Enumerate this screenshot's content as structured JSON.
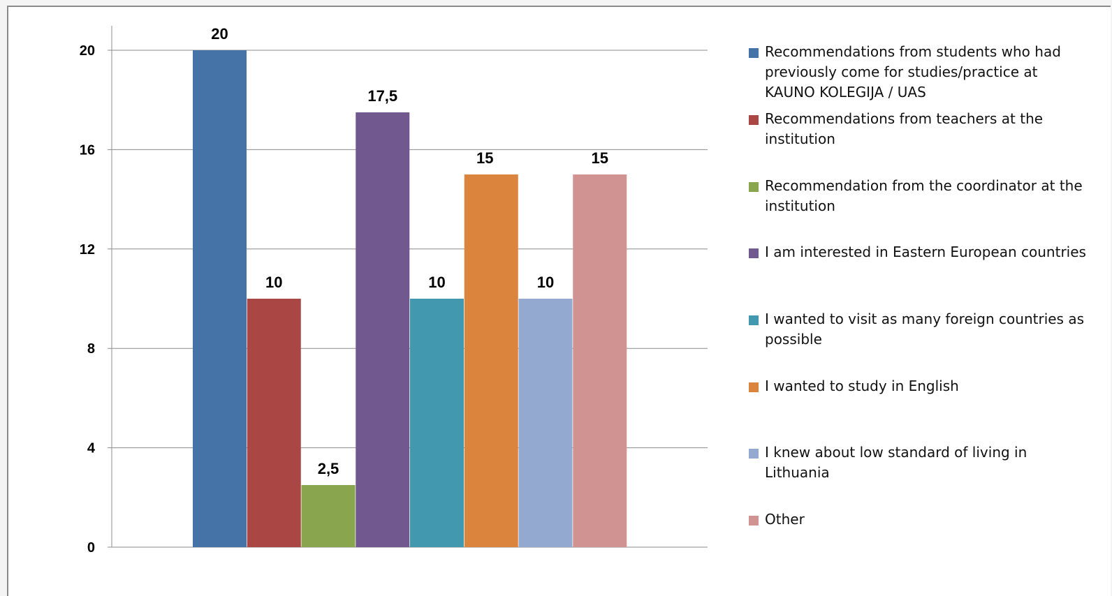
{
  "chart_data": {
    "type": "bar",
    "title": "",
    "xlabel": "",
    "ylabel": "",
    "ylim": [
      0,
      20
    ],
    "yticks": [
      "0",
      "4",
      "8",
      "12",
      "16",
      "20"
    ],
    "grid": true,
    "legend_position": "right",
    "series": [
      {
        "name": "Recommendations from students who had previously come for studies/practice at KAUNO KOLEGIJA / UAS",
        "value": 20,
        "label": "20",
        "color": "#4572a7"
      },
      {
        "name": "Recommendations from teachers at the institution",
        "value": 10,
        "label": "10",
        "color": "#aa4643"
      },
      {
        "name": "Recommendation from the coordinator at the institution",
        "value": 2.5,
        "label": "2,5",
        "color": "#89a54e"
      },
      {
        "name": "I am interested in Eastern European countries",
        "value": 17.5,
        "label": "17,5",
        "color": "#71588f"
      },
      {
        "name": "I wanted to visit as many foreign countries as possible",
        "value": 10,
        "label": "10",
        "color": "#4198af"
      },
      {
        "name": "I wanted to study in English",
        "value": 15,
        "label": "15",
        "color": "#db843d"
      },
      {
        "name": "I knew about low standard of living in Lithuania",
        "value": 10,
        "label": "10",
        "color": "#93a9cf"
      },
      {
        "name": "Other",
        "value": 15,
        "label": "15",
        "color": "#d19392"
      }
    ]
  }
}
